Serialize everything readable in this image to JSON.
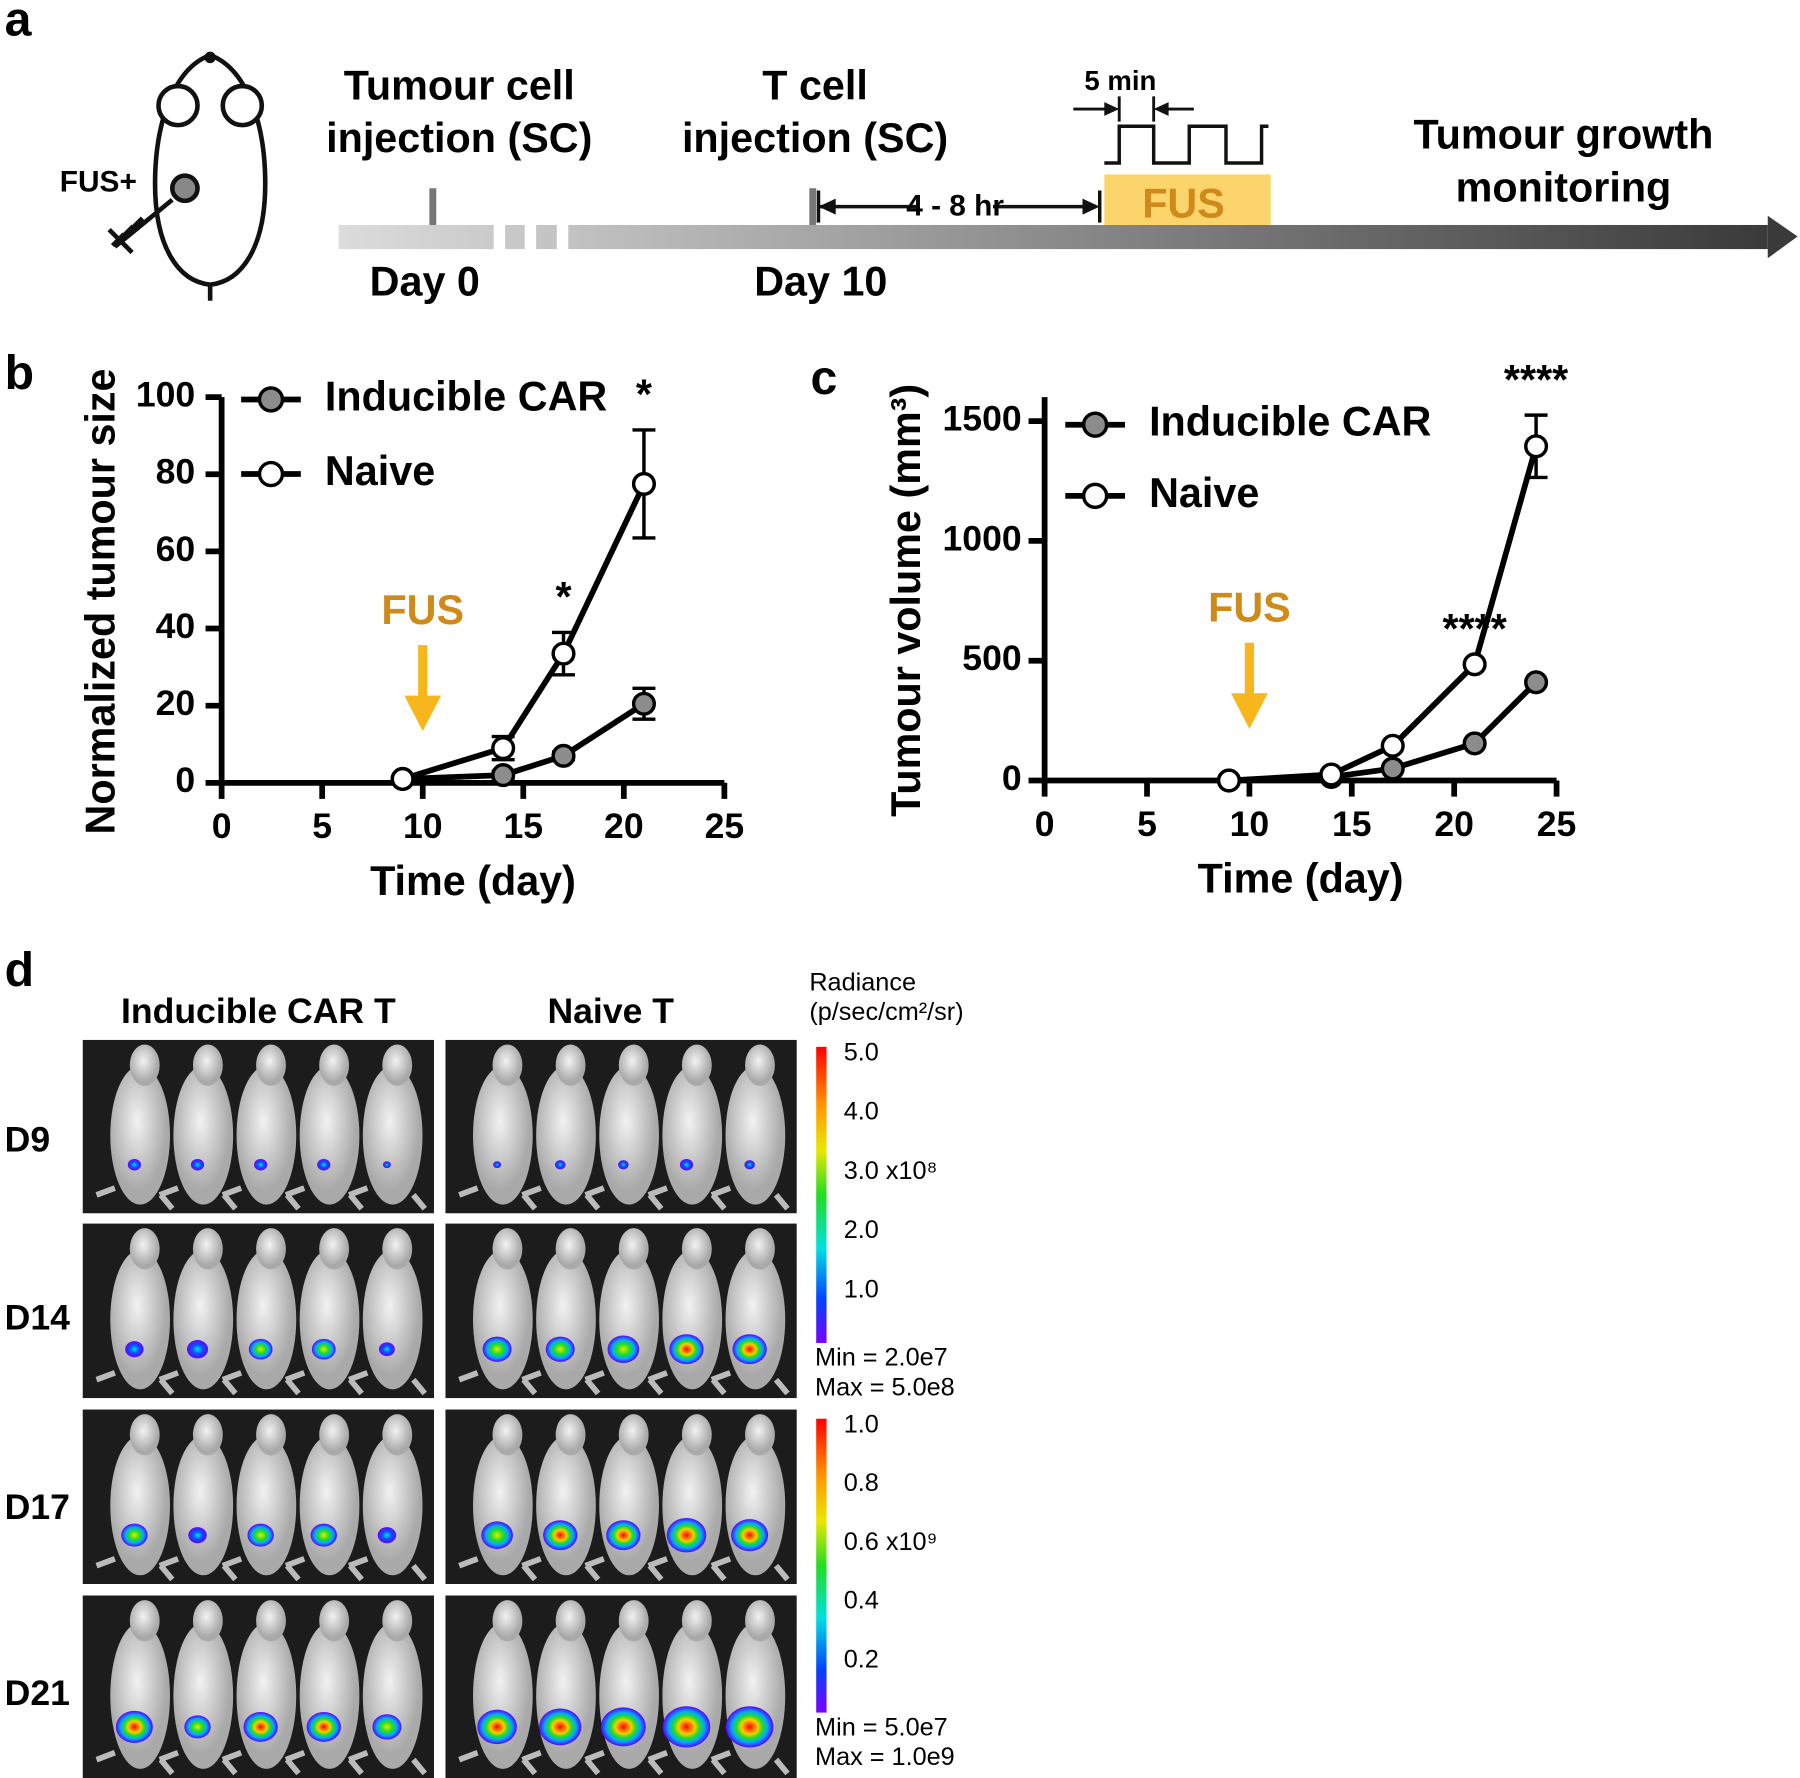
{
  "panels": {
    "a": "a",
    "b": "b",
    "c": "c",
    "d": "d"
  },
  "timeline": {
    "mouse_label": "FUS+",
    "tumour_injection": [
      "Tumour cell",
      "injection (SC)"
    ],
    "t_cell_injection": [
      "T cell",
      "injection (SC)"
    ],
    "day_start": "Day 0",
    "day_tcell": "Day 10",
    "delay": "4 - 8 hr",
    "pulse": "5 min",
    "fus": "FUS",
    "monitoring": [
      "Tumour growth",
      "monitoring"
    ]
  },
  "chart_data": [
    {
      "type": "line",
      "x": [
        9,
        14,
        17,
        21
      ],
      "series": [
        {
          "name": "Inducible CAR",
          "color": "#8c8c8c",
          "values": [
            1,
            2,
            7,
            20.5
          ],
          "errors": [
            0.5,
            1,
            1,
            4
          ]
        },
        {
          "name": "Naive",
          "color": "#ffffff",
          "values": [
            1,
            9,
            33.5,
            77.5
          ],
          "errors": [
            0.5,
            3,
            5.5,
            14
          ]
        }
      ],
      "xlim": [
        0,
        25
      ],
      "xticks": [
        0,
        5,
        10,
        15,
        20,
        25
      ],
      "ylim": [
        0,
        100
      ],
      "yticks": [
        0,
        20,
        40,
        60,
        80,
        100
      ],
      "xlabel": "Time (day)",
      "ylabel": "Normalized tumour size",
      "legend": "upper left",
      "annotations": [
        {
          "text": "*",
          "x": 17
        },
        {
          "text": "*",
          "x": 21
        }
      ],
      "marker_annotation": {
        "text": "FUS",
        "x": 10,
        "color": "#d08a1a",
        "arrow_color": "#f7b71c"
      }
    },
    {
      "type": "line",
      "x": [
        9,
        14,
        17,
        21,
        24
      ],
      "series": [
        {
          "name": "Inducible CAR",
          "color": "#8c8c8c",
          "values": [
            0,
            15,
            50,
            155,
            410
          ],
          "errors": [
            null,
            null,
            null,
            null,
            null
          ]
        },
        {
          "name": "Naive",
          "color": "#ffffff",
          "values": [
            0,
            25,
            145,
            485,
            1395
          ],
          "errors": [
            null,
            null,
            null,
            null,
            130
          ]
        }
      ],
      "xlim": [
        0,
        25
      ],
      "xticks": [
        0,
        5,
        10,
        15,
        20,
        25
      ],
      "ylim": [
        0,
        1600
      ],
      "yticks": [
        0,
        500,
        1000,
        1500
      ],
      "xlabel": "Time (day)",
      "ylabel": "Tumour volume (mm³)",
      "legend": "upper left",
      "annotations": [
        {
          "text": "****",
          "x": 21
        },
        {
          "text": "****",
          "x": 24
        }
      ],
      "marker_annotation": {
        "text": "FUS",
        "x": 10,
        "color": "#d08a1a",
        "arrow_color": "#f7b71c"
      }
    }
  ],
  "imaging": {
    "columns": [
      "Inducible CAR T",
      "Naive T"
    ],
    "rows": [
      "D9",
      "D14",
      "D17",
      "D21"
    ],
    "colorbar_title": [
      "Radiance",
      "(p/sec/cm²/sr)"
    ],
    "colorbars": [
      {
        "ticks": [
          "5.0",
          "4.0",
          "3.0 x10⁸",
          "2.0",
          "1.0"
        ],
        "min": "Min = 2.0e7",
        "max": "Max = 5.0e8"
      },
      {
        "ticks": [
          "1.0",
          "0.8",
          "0.6 x10⁹",
          "0.4",
          "0.2"
        ],
        "min": "Min = 5.0e7",
        "max": "Max = 1.0e9"
      }
    ]
  }
}
